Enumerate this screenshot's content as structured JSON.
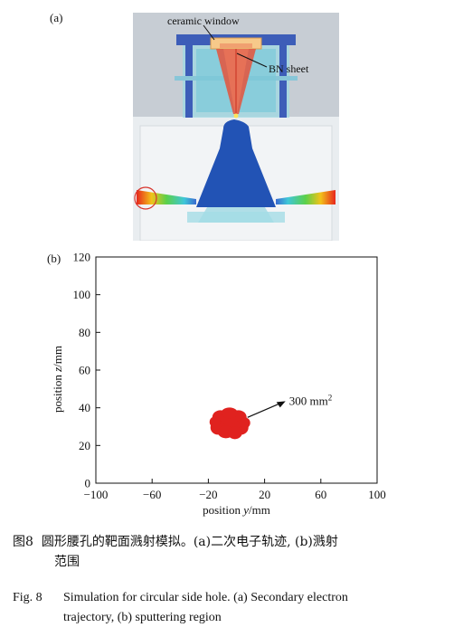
{
  "panel_a": {
    "label": "(a)",
    "annotations": {
      "ceramic_window": "ceramic window",
      "bn_sheet": "BN sheet"
    }
  },
  "panel_b": {
    "label": "(b)",
    "annotation": "300 mm",
    "annotation_sup": "2"
  },
  "chart_data": {
    "type": "scatter",
    "title": "",
    "xlabel_prefix": "position ",
    "xlabel_var": "y",
    "xlabel_unit": "/mm",
    "ylabel_prefix": "position ",
    "ylabel_var": "z",
    "ylabel_unit": "/mm",
    "xlim": [
      -100,
      100
    ],
    "ylim": [
      0,
      120
    ],
    "xticks": [
      -100,
      -60,
      -20,
      20,
      60,
      100
    ],
    "yticks": [
      0,
      20,
      40,
      60,
      80,
      100,
      120
    ],
    "grid": false,
    "region": {
      "center": [
        -5,
        32
      ],
      "color": "#e0221f",
      "area_label": "300 mm²"
    }
  },
  "caption_zh": {
    "fig": "图8",
    "line1": "圆形腰孔的靶面溅射模拟。(a)二次电子轨迹, (b)溅射",
    "line2": "范围"
  },
  "caption_en": {
    "fig": "Fig. 8",
    "line1": "Simulation for circular side hole. (a) Secondary electron",
    "line2": "trajectory, (b) sputtering region"
  }
}
